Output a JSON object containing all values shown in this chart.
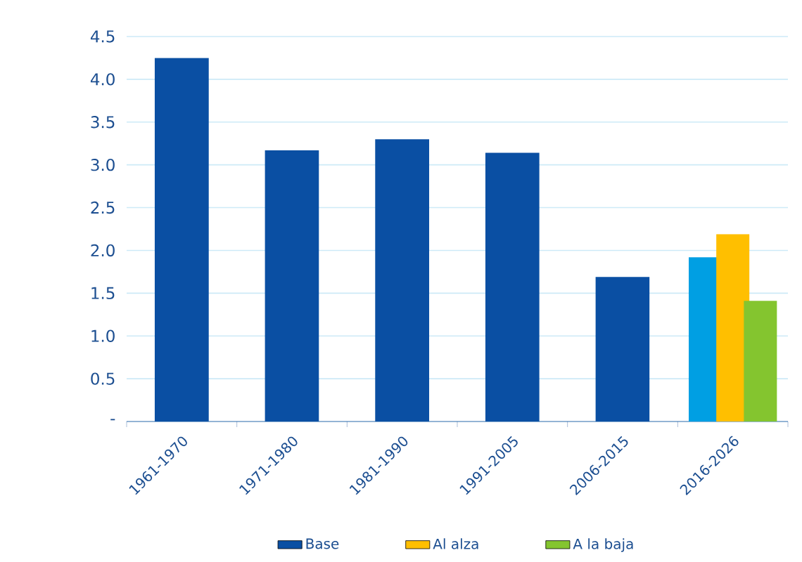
{
  "chart_data": {
    "type": "bar",
    "categories": [
      "1961-1970",
      "1971-1980",
      "1981-1990",
      "1991-2005",
      "2006-2015",
      "2016-2026"
    ],
    "series": [
      {
        "name": "Base",
        "color": "#0a4fa3",
        "colors": [
          "#0a4fa3",
          "#0a4fa3",
          "#0a4fa3",
          "#0a4fa3",
          "#0a4fa3",
          "#009fe3"
        ],
        "values": [
          4.25,
          3.17,
          3.3,
          3.14,
          1.69,
          1.92
        ]
      },
      {
        "name": "Al alza",
        "color": "#ffbf00",
        "values": [
          null,
          null,
          null,
          null,
          null,
          2.19
        ]
      },
      {
        "name": "A la baja",
        "color": "#84c52f",
        "values": [
          null,
          null,
          null,
          null,
          null,
          1.41
        ]
      }
    ],
    "ylim": [
      0,
      4.5
    ],
    "yticks": [
      {
        "value": 0,
        "label": "-"
      },
      0.5,
      {
        "value": 1,
        "label": "1.0"
      },
      1.5,
      {
        "value": 2,
        "label": "2.0"
      },
      2.5,
      {
        "value": 3,
        "label": "3.0"
      },
      3.5,
      {
        "value": 4,
        "label": "4.0"
      },
      4.5
    ],
    "grid": "y",
    "legend": "bottom"
  }
}
